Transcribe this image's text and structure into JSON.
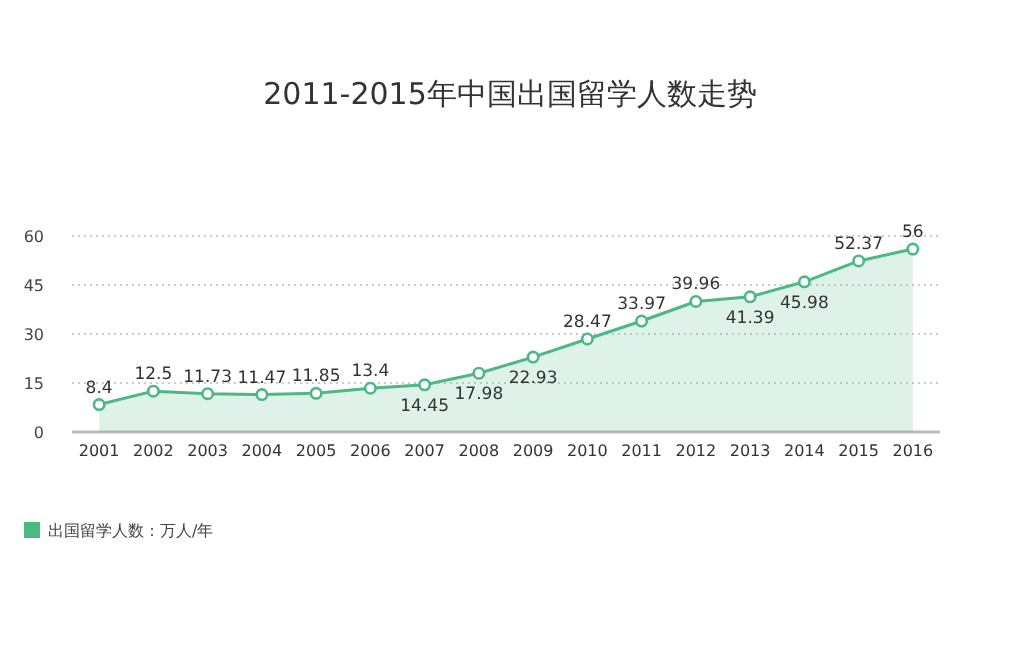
{
  "chart_data": {
    "type": "area",
    "title": "2011-2015年中国出国留学人数走势",
    "categories": [
      "2001",
      "2002",
      "2003",
      "2004",
      "2005",
      "2006",
      "2007",
      "2008",
      "2009",
      "2010",
      "2011",
      "2012",
      "2013",
      "2014",
      "2015",
      "2016"
    ],
    "series": [
      {
        "name": "出国留学人数：万人/年",
        "color": "#4cb883",
        "values": [
          8.4,
          12.5,
          11.73,
          11.47,
          11.85,
          13.4,
          14.45,
          17.98,
          22.93,
          28.47,
          33.97,
          39.96,
          41.39,
          45.98,
          52.37,
          56
        ]
      }
    ],
    "ylim": [
      0,
      60
    ],
    "yticks": [
      0,
      15,
      30,
      45,
      60
    ],
    "grid": "y",
    "legend": "bottom left",
    "marker": "circle",
    "line_style": "solid",
    "data_labels": true
  }
}
